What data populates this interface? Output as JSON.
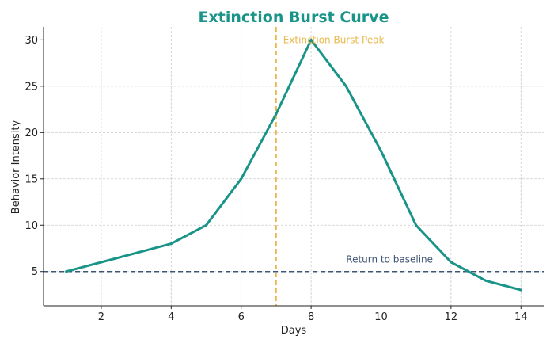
{
  "chart_data": {
    "type": "line",
    "title": "Extinction Burst Curve",
    "xlabel": "Days",
    "ylabel": "Behavior Intensity",
    "x": [
      1,
      2,
      3,
      4,
      5,
      6,
      7,
      8,
      9,
      10,
      11,
      12,
      13,
      14
    ],
    "series": [
      {
        "values": [
          5,
          6,
          7,
          8,
          10,
          15,
          22,
          30,
          25,
          18,
          10,
          6,
          4,
          3
        ],
        "color": "#1a9488"
      }
    ],
    "xlim": [
      0.35,
      14.65
    ],
    "ylim": [
      1.3,
      31.4
    ],
    "xticks": [
      2,
      4,
      6,
      8,
      10,
      12,
      14
    ],
    "yticks": [
      5,
      10,
      15,
      20,
      25,
      30
    ],
    "grid": true,
    "reference_lines": [
      {
        "orientation": "vertical",
        "x": 7,
        "label": "Extinction Burst Peak",
        "label_x": 7.2,
        "label_y": 30,
        "color": "#e9b84a",
        "style": "dashed"
      },
      {
        "orientation": "horizontal",
        "y": 5,
        "label": "Return to baseline",
        "label_x": 9,
        "label_y": 6.3,
        "color": "#3e5475",
        "style": "dashed"
      }
    ],
    "title_color": "#1a9488"
  }
}
